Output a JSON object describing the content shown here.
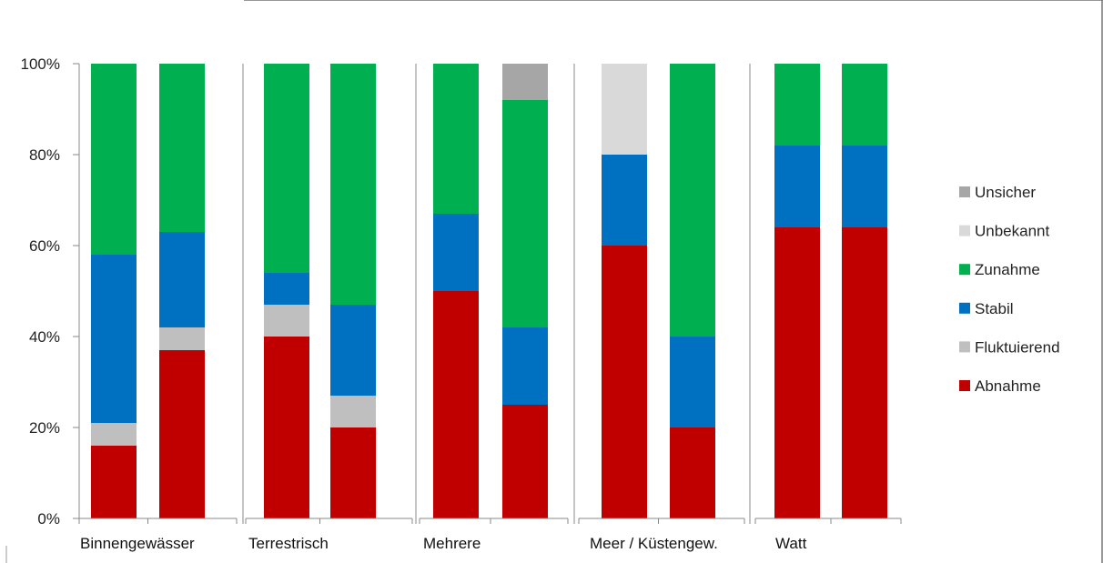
{
  "chart_data": {
    "type": "bar",
    "stacked": "percent",
    "grid": false,
    "legend_position": "right",
    "ylim": [
      0,
      100
    ],
    "y_ticks": [
      "0%",
      "20%",
      "40%",
      "60%",
      "80%",
      "100%"
    ],
    "groups": [
      {
        "label": "Binnengewässer",
        "bars": 2
      },
      {
        "label": "Terrestrisch",
        "bars": 2
      },
      {
        "label": "Mehrere",
        "bars": 2
      },
      {
        "label": "Meer / Küstengew.",
        "bars": 2
      },
      {
        "label": "Watt",
        "bars": 2
      }
    ],
    "series": [
      {
        "name": "Abnahme",
        "color": "#c00000",
        "values": [
          16,
          37,
          40,
          20,
          50,
          25,
          60,
          20,
          64,
          64
        ]
      },
      {
        "name": "Fluktuierend",
        "color": "#bfbfbf",
        "values": [
          5,
          5,
          7,
          7,
          0,
          0,
          0,
          0,
          0,
          0
        ]
      },
      {
        "name": "Stabil",
        "color": "#0070c0",
        "values": [
          37,
          21,
          7,
          20,
          17,
          17,
          20,
          20,
          18,
          18
        ]
      },
      {
        "name": "Zunahme",
        "color": "#00b050",
        "values": [
          42,
          37,
          46,
          53,
          33,
          50,
          0,
          60,
          18,
          18
        ]
      },
      {
        "name": "Unbekannt",
        "color": "#d9d9d9",
        "values": [
          0,
          0,
          0,
          0,
          0,
          0,
          20,
          0,
          0,
          0
        ]
      },
      {
        "name": "Unsicher",
        "color": "#a6a6a6",
        "values": [
          0,
          0,
          0,
          0,
          0,
          8,
          0,
          0,
          0,
          0
        ]
      }
    ],
    "legend_order": [
      "Unsicher",
      "Unbekannt",
      "Zunahme",
      "Stabil",
      "Fluktuierend",
      "Abnahme"
    ]
  }
}
